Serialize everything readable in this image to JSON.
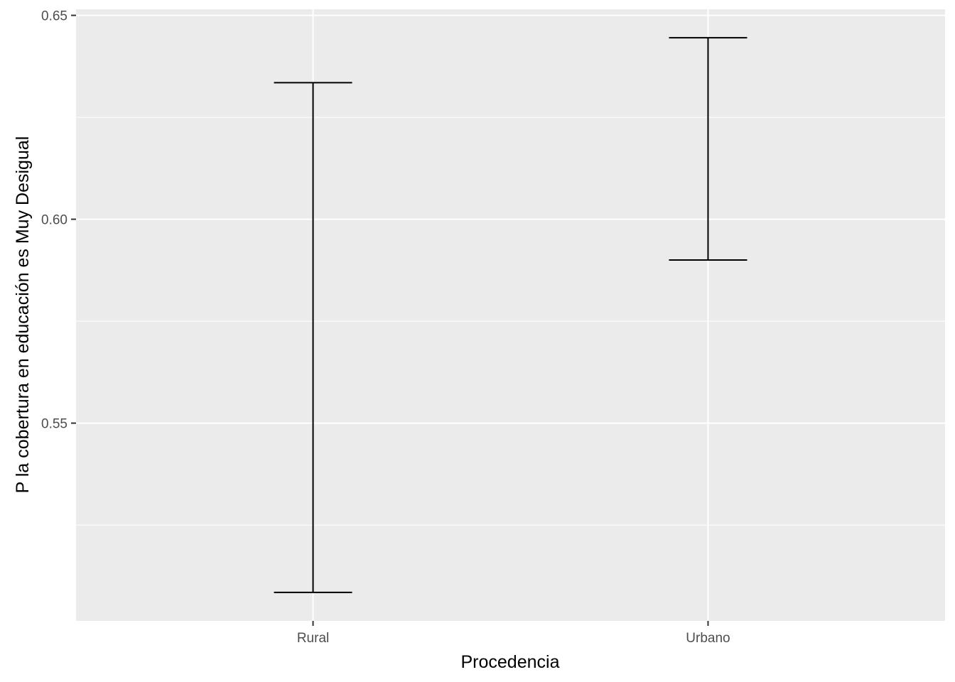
{
  "chart_data": {
    "type": "errorbar",
    "xlabel": "Procedencia",
    "ylabel": "P la cobertura en educación es Muy Desigual",
    "categories": [
      "Rural",
      "Urbano"
    ],
    "series": [
      {
        "lower": [
          0.5085,
          0.59
        ],
        "upper": [
          0.6335,
          0.6445
        ]
      }
    ],
    "ylim": [
      0.5015,
      0.6515
    ],
    "yticks": [
      0.55,
      0.6,
      0.65
    ],
    "ytick_labels": [
      "0.55",
      "0.60",
      "0.65"
    ],
    "grid": true,
    "colors": {
      "panel": "#ebebeb",
      "grid": "#ffffff",
      "bar": "#000000",
      "tick_text": "#4d4d4d",
      "tick_mark": "#333333"
    }
  }
}
